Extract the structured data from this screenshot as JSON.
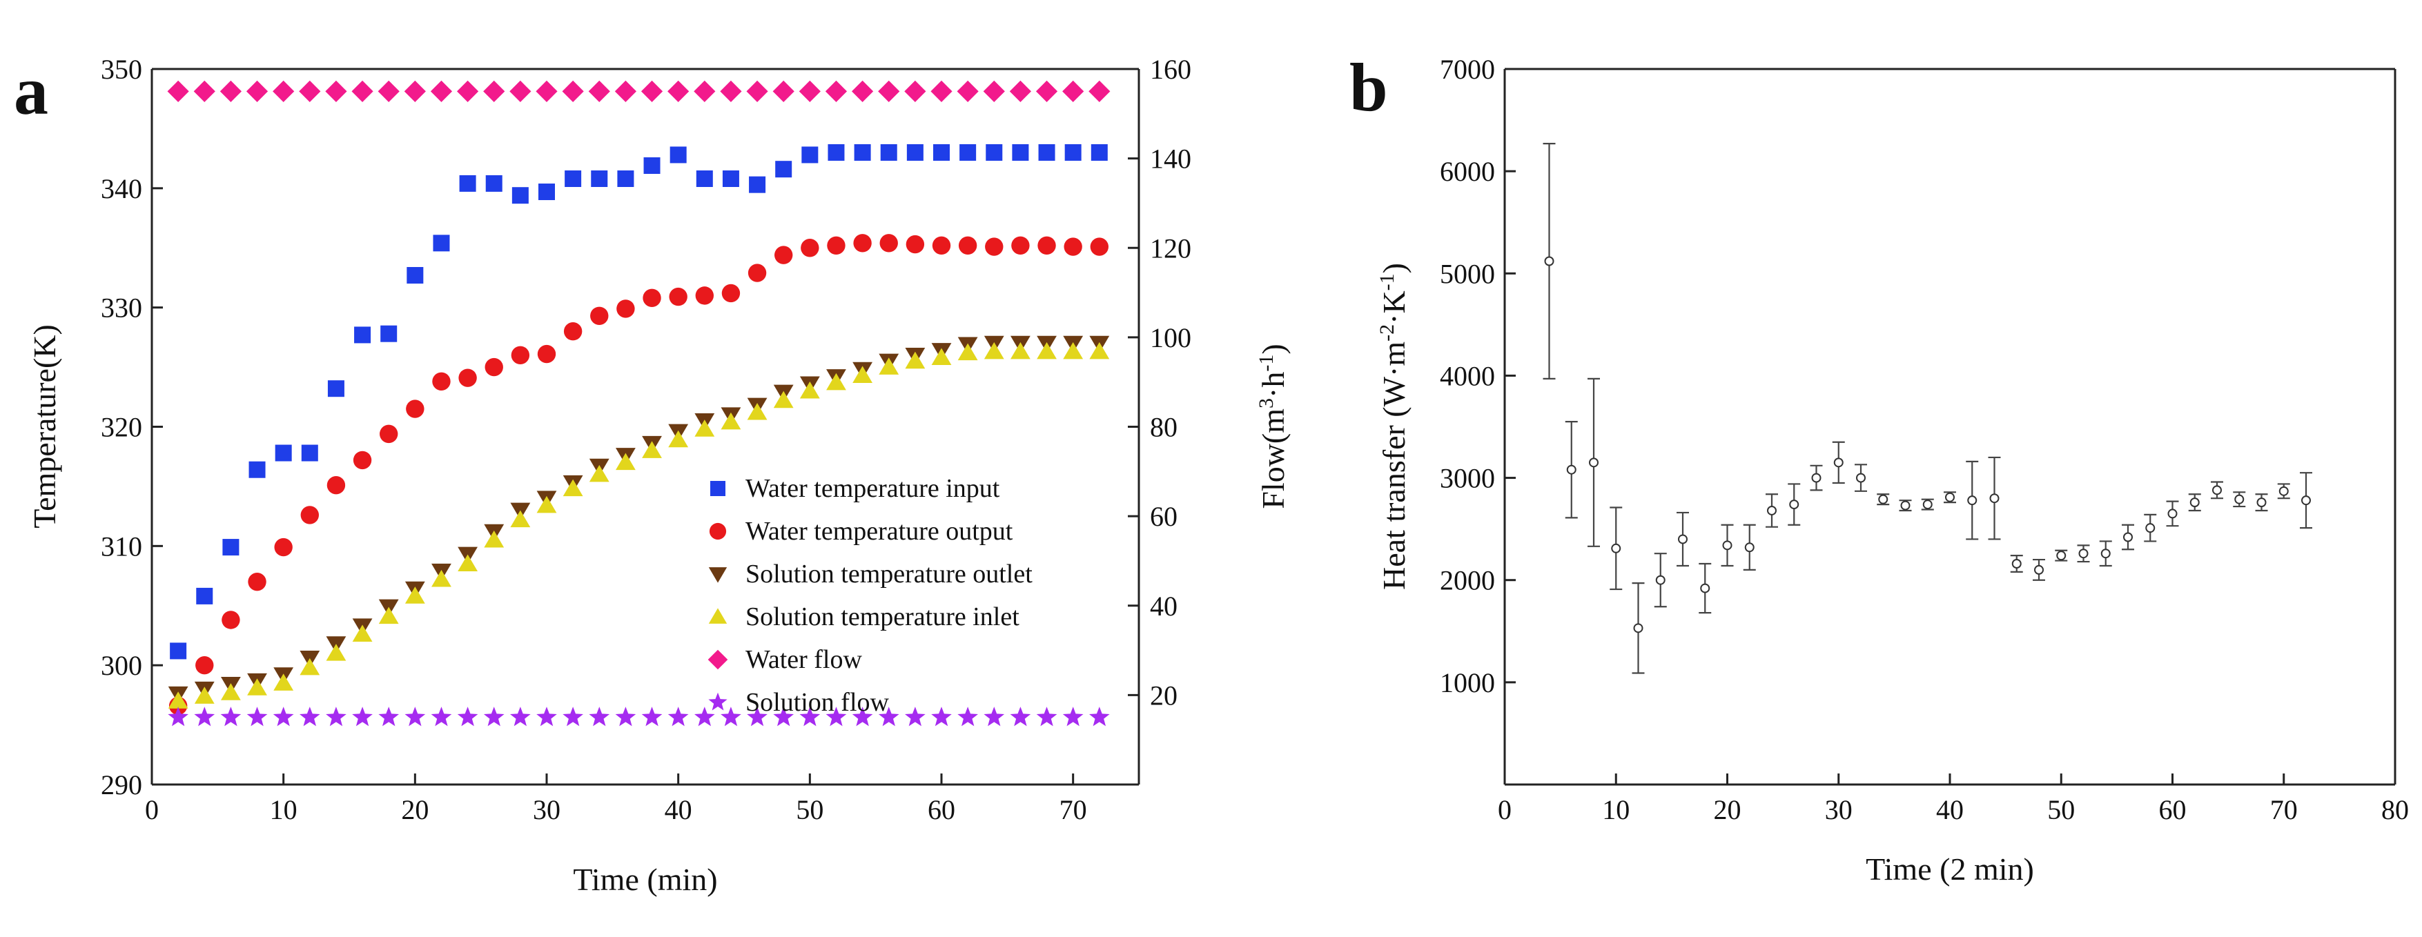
{
  "chart_data": [
    {
      "type": "scatter",
      "panel_label": "a",
      "xlabel": "Time (min)",
      "ylabel": "Temperature(K)",
      "y2label": "Flow(m3·h-1)",
      "y2label_base": "Flow(m",
      "y2label_sup1": "3",
      "y2label_mid": "·h",
      "y2label_sup2": "-1",
      "y2label_end": ")",
      "xlim": [
        0,
        75
      ],
      "ylim": [
        290,
        350
      ],
      "y2lim": [
        0,
        160
      ],
      "xticks": [
        "0",
        "10",
        "20",
        "30",
        "40",
        "50",
        "60",
        "70"
      ],
      "yticks": [
        "290",
        "300",
        "310",
        "320",
        "330",
        "340",
        "350"
      ],
      "y2ticks": [
        "20",
        "40",
        "60",
        "80",
        "100",
        "120",
        "140",
        "160"
      ],
      "legend_position": "lower-right",
      "series": [
        {
          "name": "Water temperature input",
          "marker": "square",
          "color": "#1f3ee8",
          "axis": "left",
          "x": [
            2,
            4,
            6,
            8,
            10,
            12,
            14,
            16,
            18,
            20,
            22,
            24,
            26,
            28,
            30,
            32,
            34,
            36,
            38,
            40,
            42,
            44,
            46,
            48,
            50,
            52,
            54,
            56,
            58,
            60,
            62,
            64,
            66,
            68,
            70,
            72
          ],
          "values": [
            301.2,
            305.8,
            309.9,
            316.4,
            317.8,
            317.8,
            323.2,
            327.7,
            327.8,
            332.7,
            335.4,
            340.4,
            340.4,
            339.4,
            339.7,
            340.8,
            340.8,
            340.8,
            341.9,
            342.8,
            340.8,
            340.8,
            340.3,
            341.6,
            342.8,
            343.0,
            343.0,
            343.0,
            343.0,
            343.0,
            343.0,
            343.0,
            343.0,
            343.0,
            343.0,
            343.0
          ]
        },
        {
          "name": "Water temperature output",
          "marker": "circle",
          "color": "#e8191c",
          "axis": "left",
          "x": [
            2,
            4,
            6,
            8,
            10,
            12,
            14,
            16,
            18,
            20,
            22,
            24,
            26,
            28,
            30,
            32,
            34,
            36,
            38,
            40,
            42,
            44,
            46,
            48,
            50,
            52,
            54,
            56,
            58,
            60,
            62,
            64,
            66,
            68,
            70,
            72
          ],
          "values": [
            296.6,
            300.0,
            303.8,
            307.0,
            309.9,
            312.6,
            315.1,
            317.2,
            319.4,
            321.5,
            323.8,
            324.1,
            325.0,
            326.0,
            326.1,
            328.0,
            329.3,
            329.9,
            330.8,
            330.9,
            331.0,
            331.2,
            332.9,
            334.4,
            335.0,
            335.2,
            335.4,
            335.4,
            335.3,
            335.2,
            335.2,
            335.1,
            335.2,
            335.2,
            335.1,
            335.1
          ]
        },
        {
          "name": "Solution temperature outlet",
          "marker": "triangle-down",
          "color": "#6b3a12",
          "axis": "left",
          "x": [
            2,
            4,
            6,
            8,
            10,
            12,
            14,
            16,
            18,
            20,
            22,
            24,
            26,
            28,
            30,
            32,
            34,
            36,
            38,
            40,
            42,
            44,
            46,
            48,
            50,
            52,
            54,
            56,
            58,
            60,
            62,
            64,
            66,
            68,
            70,
            72
          ],
          "values": [
            297.6,
            298.0,
            298.4,
            298.7,
            299.2,
            300.6,
            301.8,
            303.3,
            304.9,
            306.4,
            307.9,
            309.3,
            311.2,
            313.0,
            314.0,
            315.3,
            316.7,
            317.6,
            318.6,
            319.6,
            320.5,
            321.0,
            321.8,
            322.9,
            323.6,
            324.2,
            324.8,
            325.5,
            326.0,
            326.4,
            326.9,
            327.0,
            327.0,
            327.0,
            327.0,
            327.0
          ]
        },
        {
          "name": "Solution temperature inlet",
          "marker": "triangle-up",
          "color": "#e2d61c",
          "axis": "left",
          "x": [
            2,
            4,
            6,
            8,
            10,
            12,
            14,
            16,
            18,
            20,
            22,
            24,
            26,
            28,
            30,
            32,
            34,
            36,
            38,
            40,
            42,
            44,
            46,
            48,
            50,
            52,
            54,
            56,
            58,
            60,
            62,
            64,
            66,
            68,
            70,
            72
          ],
          "values": [
            297.0,
            297.4,
            297.7,
            298.1,
            298.5,
            299.8,
            301.0,
            302.6,
            304.1,
            305.8,
            307.2,
            308.5,
            310.5,
            312.2,
            313.4,
            314.8,
            316.0,
            317.0,
            318.0,
            318.9,
            319.8,
            320.4,
            321.2,
            322.2,
            323.0,
            323.7,
            324.3,
            325.0,
            325.5,
            325.8,
            326.2,
            326.3,
            326.3,
            326.3,
            326.3,
            326.3
          ]
        },
        {
          "name": "Water flow",
          "marker": "diamond",
          "color": "#f21a8c",
          "axis": "right",
          "x": [
            2,
            4,
            6,
            8,
            10,
            12,
            14,
            16,
            18,
            20,
            22,
            24,
            26,
            28,
            30,
            32,
            34,
            36,
            38,
            40,
            42,
            44,
            46,
            48,
            50,
            52,
            54,
            56,
            58,
            60,
            62,
            64,
            66,
            68,
            70,
            72
          ],
          "values": [
            155,
            155,
            155,
            155,
            155,
            155,
            155,
            155,
            155,
            155,
            155,
            155,
            155,
            155,
            155,
            155,
            155,
            155,
            155,
            155,
            155,
            155,
            155,
            155,
            155,
            155,
            155,
            155,
            155,
            155,
            155,
            155,
            155,
            155,
            155,
            155
          ]
        },
        {
          "name": "Solution flow",
          "marker": "star",
          "color": "#a52bf0",
          "axis": "right",
          "x": [
            2,
            4,
            6,
            8,
            10,
            12,
            14,
            16,
            18,
            20,
            22,
            24,
            26,
            28,
            30,
            32,
            34,
            36,
            38,
            40,
            42,
            44,
            46,
            48,
            50,
            52,
            54,
            56,
            58,
            60,
            62,
            64,
            66,
            68,
            70,
            72
          ],
          "values": [
            15,
            15,
            15,
            15,
            15,
            15,
            15,
            15,
            15,
            15,
            15,
            15,
            15,
            15,
            15,
            15,
            15,
            15,
            15,
            15,
            15,
            15,
            15,
            15,
            15,
            15,
            15,
            15,
            15,
            15,
            15,
            15,
            15,
            15,
            15,
            15
          ]
        }
      ]
    },
    {
      "type": "scatter",
      "panel_label": "b",
      "xlabel": "Time (2 min)",
      "ylabel": "Heat transfer (W·m-2·K-1)",
      "ylabel_base": "Heat transfer (W·m",
      "ylabel_sup1": "-2",
      "ylabel_mid": "·K",
      "ylabel_sup2": "-1",
      "ylabel_end": ")",
      "xlim": [
        0,
        80
      ],
      "ylim": [
        0,
        7000
      ],
      "xticks": [
        "0",
        "10",
        "20",
        "30",
        "40",
        "50",
        "60",
        "70",
        "80"
      ],
      "yticks": [
        "1000",
        "2000",
        "3000",
        "4000",
        "5000",
        "6000",
        "7000"
      ],
      "series": [
        {
          "name": "Heat transfer",
          "marker": "open-circle",
          "color": "#333333",
          "x": [
            4,
            6,
            8,
            10,
            12,
            14,
            16,
            18,
            20,
            22,
            24,
            26,
            28,
            30,
            32,
            34,
            36,
            38,
            40,
            42,
            44,
            46,
            48,
            50,
            52,
            54,
            56,
            58,
            60,
            62,
            64,
            66,
            68,
            70,
            72
          ],
          "values": [
            5120,
            3080,
            3150,
            2310,
            1530,
            2000,
            2400,
            1920,
            2340,
            2320,
            2680,
            2740,
            3000,
            3150,
            3000,
            2790,
            2730,
            2740,
            2810,
            2780,
            2800,
            2160,
            2100,
            2240,
            2260,
            2260,
            2420,
            2510,
            2650,
            2760,
            2880,
            2790,
            2760,
            2870,
            2780
          ],
          "errors": [
            1150,
            470,
            820,
            400,
            440,
            260,
            260,
            240,
            200,
            220,
            160,
            200,
            120,
            200,
            130,
            50,
            50,
            50,
            50,
            380,
            400,
            80,
            100,
            50,
            80,
            120,
            120,
            130,
            120,
            80,
            80,
            70,
            80,
            70,
            270
          ]
        }
      ]
    }
  ]
}
